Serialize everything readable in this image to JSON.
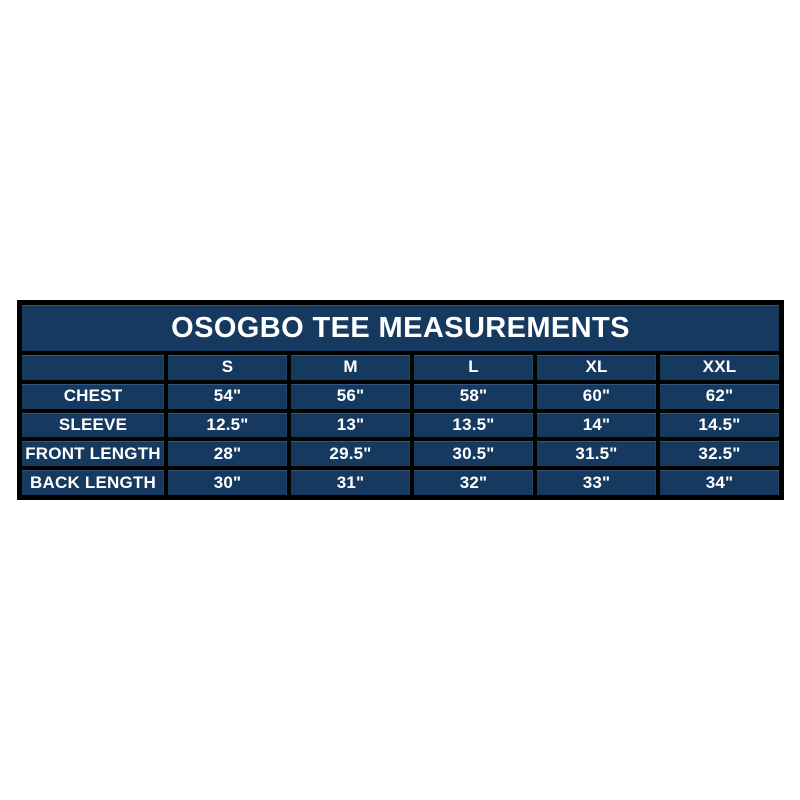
{
  "colors": {
    "page_bg": "#ffffff",
    "cell_bg": "#16395f",
    "border": "#000000",
    "text": "#ffffff"
  },
  "chart_data": {
    "type": "table",
    "title": "OSOGBO TEE MEASUREMENTS",
    "corner_label": "",
    "columns": [
      "S",
      "M",
      "L",
      "XL",
      "XXL"
    ],
    "rows": [
      {
        "label": "CHEST",
        "values": [
          "54\"",
          "56\"",
          "58\"",
          "60\"",
          "62\""
        ]
      },
      {
        "label": "SLEEVE",
        "values": [
          "12.5\"",
          "13\"",
          "13.5\"",
          "14\"",
          "14.5\""
        ]
      },
      {
        "label": "FRONT LENGTH",
        "values": [
          "28\"",
          "29.5\"",
          "30.5\"",
          "31.5\"",
          "32.5\""
        ]
      },
      {
        "label": "BACK LENGTH",
        "values": [
          "30\"",
          "31\"",
          "32\"",
          "33\"",
          "34\""
        ]
      }
    ],
    "layout_hints": {
      "legend": "none",
      "grid": "black separators between navy cells",
      "position": "table centered vertically on white canvas"
    }
  }
}
